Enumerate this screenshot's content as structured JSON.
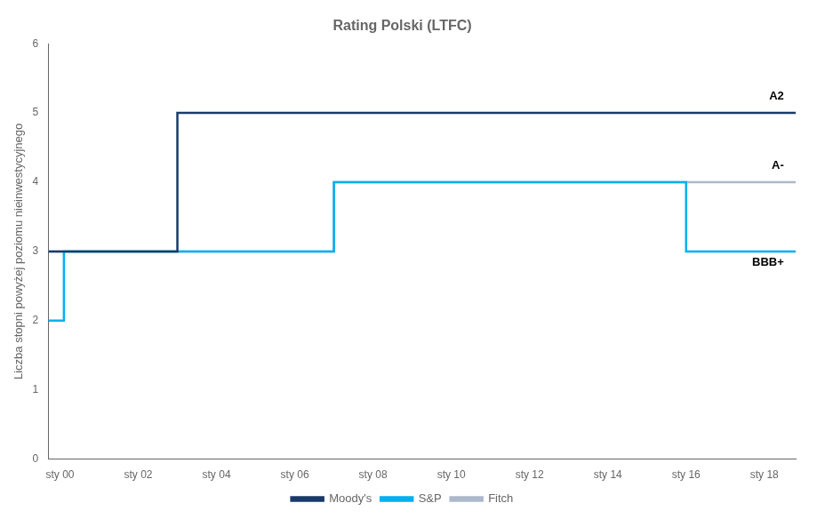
{
  "chart_data": {
    "type": "line",
    "title": "Rating Polski (LTFC)",
    "ylabel": "Liczba stopni powyżej poziomu nieinwestycyjnego",
    "xlim": [
      1999.7,
      2018.8
    ],
    "xticks": [
      {
        "value": 2000,
        "label": "sty 00"
      },
      {
        "value": 2002,
        "label": "sty 02"
      },
      {
        "value": 2004,
        "label": "sty 04"
      },
      {
        "value": 2006,
        "label": "sty 06"
      },
      {
        "value": 2008,
        "label": "sty 08"
      },
      {
        "value": 2010,
        "label": "sty 10"
      },
      {
        "value": 2012,
        "label": "sty 12"
      },
      {
        "value": 2014,
        "label": "sty 14"
      },
      {
        "value": 2016,
        "label": "sty 16"
      },
      {
        "value": 2018,
        "label": "sty 18"
      }
    ],
    "ylim": [
      0,
      6
    ],
    "yticks": [
      0,
      1,
      2,
      3,
      4,
      5,
      6
    ],
    "grid": false,
    "legend": "bottom",
    "series": [
      {
        "name": "Moody's",
        "color": "#1a3a6b",
        "x": [
          1999.7,
          2003.0,
          2003.0,
          2018.8
        ],
        "values": [
          3,
          3,
          5,
          5
        ]
      },
      {
        "name": "S&P",
        "color": "#00b0f0",
        "x": [
          1999.7,
          2000.1,
          2000.1,
          2007.0,
          2007.0,
          2016.0,
          2016.0,
          2018.8
        ],
        "values": [
          2,
          2,
          3,
          3,
          4,
          4,
          3,
          3
        ]
      },
      {
        "name": "Fitch",
        "color": "#adb9ca",
        "x": [
          1999.7,
          2007.0,
          2007.0,
          2018.8
        ],
        "values": [
          3,
          3,
          4,
          4
        ]
      }
    ],
    "annotations": [
      {
        "text": "A2",
        "x": 2018.5,
        "y": 5.15
      },
      {
        "text": "A-",
        "x": 2018.5,
        "y": 4.15
      },
      {
        "text": "BBB+",
        "x": 2018.5,
        "y": 2.75
      }
    ]
  }
}
